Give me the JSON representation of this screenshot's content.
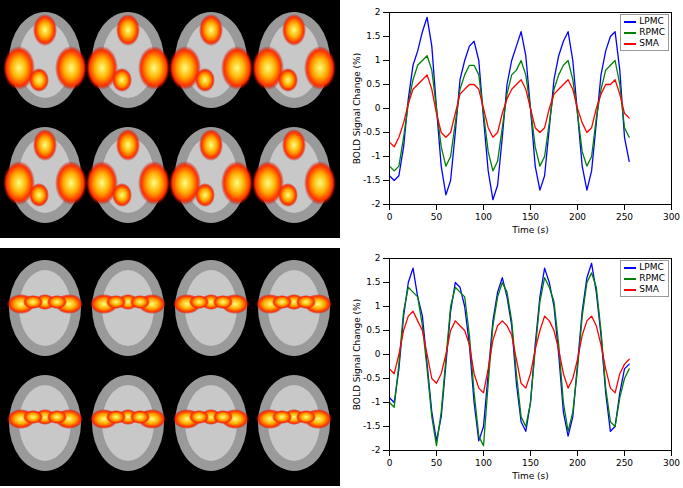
{
  "chart_data": [
    {
      "type": "line",
      "xlabel": "Time (s)",
      "ylabel": "BOLD Signal Change (%)",
      "xlim": [
        0,
        300
      ],
      "xticks": [
        0,
        50,
        100,
        150,
        200,
        250,
        300
      ],
      "ylim": [
        -2,
        2
      ],
      "yticks": [
        -2,
        -1.5,
        -1,
        -0.5,
        0,
        0.5,
        1,
        1.5,
        2
      ],
      "grid": false,
      "legend": "top-right",
      "x": [
        0,
        5,
        10,
        15,
        20,
        25,
        30,
        35,
        40,
        45,
        50,
        55,
        60,
        65,
        70,
        75,
        80,
        85,
        90,
        95,
        100,
        105,
        110,
        115,
        120,
        125,
        130,
        135,
        140,
        145,
        150,
        155,
        160,
        165,
        170,
        175,
        180,
        185,
        190,
        195,
        200,
        205,
        210,
        215,
        220,
        225,
        230,
        235,
        240,
        245,
        250,
        255
      ],
      "series": [
        {
          "name": "LPMC",
          "color": "#0000ff",
          "values": [
            -1.4,
            -1.5,
            -1.4,
            -0.8,
            0.2,
            0.9,
            1.2,
            1.6,
            1.9,
            1.3,
            0.0,
            -1.2,
            -1.8,
            -1.5,
            -0.5,
            0.6,
            1.0,
            1.3,
            1.4,
            1.0,
            -0.2,
            -1.3,
            -1.9,
            -1.6,
            -0.6,
            0.5,
            1.0,
            1.3,
            1.6,
            1.1,
            0.0,
            -1.2,
            -1.7,
            -1.4,
            -0.4,
            0.6,
            1.1,
            1.4,
            1.6,
            1.0,
            -0.1,
            -1.2,
            -1.7,
            -1.3,
            -0.3,
            0.7,
            1.2,
            1.5,
            1.6,
            0.8,
            -0.6,
            -1.1
          ]
        },
        {
          "name": "RPMC",
          "color": "#008000",
          "values": [
            -1.2,
            -1.3,
            -1.2,
            -0.6,
            0.1,
            0.6,
            0.9,
            1.0,
            1.1,
            0.8,
            0.0,
            -0.8,
            -1.2,
            -1.0,
            -0.3,
            0.4,
            0.7,
            0.9,
            0.9,
            0.7,
            -0.1,
            -0.9,
            -1.3,
            -1.1,
            -0.4,
            0.3,
            0.7,
            0.8,
            1.0,
            0.7,
            0.0,
            -0.8,
            -1.2,
            -1.0,
            -0.3,
            0.4,
            0.7,
            0.9,
            1.0,
            0.6,
            -0.1,
            -0.9,
            -1.2,
            -1.0,
            -0.2,
            0.4,
            0.8,
            0.9,
            1.0,
            0.5,
            -0.4,
            -0.6
          ]
        },
        {
          "name": "SMA",
          "color": "#ff0000",
          "values": [
            -0.7,
            -0.8,
            -0.6,
            -0.3,
            0.1,
            0.4,
            0.5,
            0.6,
            0.7,
            0.4,
            -0.1,
            -0.5,
            -0.6,
            -0.5,
            -0.1,
            0.3,
            0.4,
            0.5,
            0.5,
            0.4,
            0.0,
            -0.4,
            -0.6,
            -0.5,
            -0.1,
            0.2,
            0.4,
            0.5,
            0.6,
            0.4,
            0.0,
            -0.4,
            -0.5,
            -0.4,
            0.0,
            0.3,
            0.4,
            0.5,
            0.6,
            0.4,
            0.0,
            -0.3,
            -0.5,
            -0.4,
            0.0,
            0.3,
            0.5,
            0.5,
            0.6,
            0.3,
            -0.1,
            -0.2
          ]
        }
      ]
    },
    {
      "type": "line",
      "xlabel": "Time (s)",
      "ylabel": "BOLD Signal Change (%)",
      "xlim": [
        0,
        300
      ],
      "xticks": [
        0,
        50,
        100,
        150,
        200,
        250,
        300
      ],
      "ylim": [
        -2,
        2
      ],
      "yticks": [
        -2,
        -1.5,
        -1,
        -0.5,
        0,
        0.5,
        1,
        1.5,
        2
      ],
      "grid": false,
      "legend": "top-right",
      "x": [
        0,
        5,
        10,
        15,
        20,
        25,
        30,
        35,
        40,
        45,
        50,
        55,
        60,
        65,
        70,
        75,
        80,
        85,
        90,
        95,
        100,
        105,
        110,
        115,
        120,
        125,
        130,
        135,
        140,
        145,
        150,
        155,
        160,
        165,
        170,
        175,
        180,
        185,
        190,
        195,
        200,
        205,
        210,
        215,
        220,
        225,
        230,
        235,
        240,
        245,
        250,
        255
      ],
      "series": [
        {
          "name": "LPMC",
          "color": "#0000ff",
          "values": [
            -0.9,
            -1.0,
            -0.3,
            0.8,
            1.5,
            1.8,
            1.2,
            0.8,
            -0.2,
            -1.2,
            -1.8,
            -1.3,
            -0.2,
            0.9,
            1.5,
            1.4,
            1.0,
            0.2,
            -1.0,
            -1.8,
            -1.5,
            -0.4,
            0.7,
            1.3,
            1.6,
            1.2,
            0.6,
            -0.6,
            -1.4,
            -1.6,
            -1.0,
            0.2,
            1.2,
            1.8,
            1.5,
            1.0,
            0.0,
            -1.2,
            -1.7,
            -1.3,
            -0.2,
            0.9,
            1.6,
            1.9,
            1.3,
            0.4,
            -0.8,
            -1.6,
            -1.5,
            -0.8,
            -0.3,
            -0.2
          ]
        },
        {
          "name": "RPMC",
          "color": "#008000",
          "values": [
            -1.0,
            -1.1,
            -0.2,
            0.9,
            1.4,
            1.3,
            1.2,
            0.6,
            -0.3,
            -1.3,
            -1.9,
            -1.2,
            -0.1,
            1.0,
            1.4,
            1.3,
            1.2,
            0.4,
            -0.8,
            -1.7,
            -1.9,
            -0.6,
            0.6,
            1.2,
            1.5,
            1.3,
            0.7,
            -0.4,
            -1.3,
            -1.5,
            -1.0,
            0.1,
            1.1,
            1.6,
            1.4,
            1.1,
            0.2,
            -1.0,
            -1.6,
            -1.2,
            -0.3,
            0.8,
            1.5,
            1.7,
            1.4,
            0.5,
            -0.7,
            -1.4,
            -1.5,
            -0.9,
            -0.5,
            -0.3
          ]
        },
        {
          "name": "SMA",
          "color": "#ff0000",
          "values": [
            -0.3,
            -0.4,
            0.0,
            0.5,
            0.8,
            0.9,
            0.7,
            0.5,
            0.0,
            -0.5,
            -0.6,
            -0.4,
            0.0,
            0.5,
            0.7,
            0.6,
            0.5,
            0.2,
            -0.4,
            -0.7,
            -0.8,
            -0.3,
            0.3,
            0.6,
            0.7,
            0.6,
            0.4,
            -0.1,
            -0.6,
            -0.7,
            -0.4,
            0.1,
            0.5,
            0.8,
            0.7,
            0.5,
            0.1,
            -0.4,
            -0.7,
            -0.5,
            -0.1,
            0.4,
            0.7,
            0.8,
            0.6,
            0.2,
            -0.3,
            -0.7,
            -0.8,
            -0.4,
            -0.2,
            -0.1
          ]
        }
      ]
    }
  ]
}
